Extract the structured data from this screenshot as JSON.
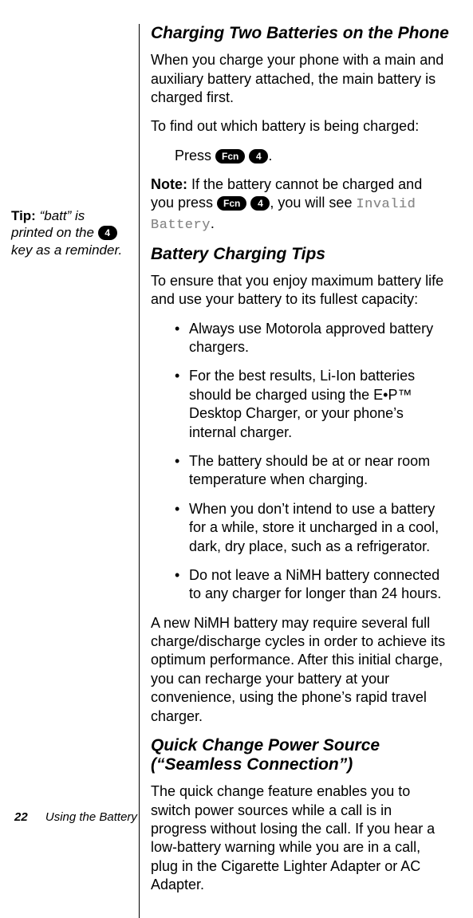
{
  "sidebar": {
    "tip_label": "Tip:",
    "tip_text_1": "“batt” is printed on the ",
    "key4": "4",
    "tip_text_2": " key as a reminder."
  },
  "sec1": {
    "heading": "Charging Two Batteries on the Phone",
    "p1": "When you charge your phone with a main and auxiliary battery attached, the main battery is charged first.",
    "p2": "To find out which battery is being charged:",
    "press_label": "Press ",
    "key_fcn": "Fcn",
    "key_4": "4",
    "press_end": ".",
    "note_label": "Note:",
    "note_text_1": " If the battery cannot be charged and you press ",
    "note_text_2": ", you will see ",
    "invalid": "Invalid Battery",
    "note_text_3": "."
  },
  "sec2": {
    "heading": "Battery Charging Tips",
    "intro": "To ensure that you enjoy maximum battery life and use your battery to its fullest capacity:",
    "b1": "Always use Motorola approved battery chargers.",
    "b2": "For the best results, Li-Ion batteries should be charged using the E•P™ Desktop Charger, or your phone’s internal charger.",
    "b3": "The battery should be at or near room temperature when charging.",
    "b4": "When you don’t intend to use a battery for a while, store it uncharged in a cool, dark, dry place, such as a refrigerator.",
    "b5": "Do not leave a NiMH battery connected to any charger for longer than 24 hours.",
    "outro": "A new NiMH battery may require several full charge/discharge cycles in order to achieve its optimum performance. After this initial charge, you can recharge your battery at your convenience, using the phone’s rapid travel charger."
  },
  "sec3": {
    "heading": "Quick Change Power Source (“Seamless Connection”)",
    "p1": "The quick change feature enables you to switch power sources while a call is in progress without losing the call. If you hear a low-battery warning while you are in a call, plug in the Cigarette Lighter Adapter or AC Adapter."
  },
  "footer": {
    "page": "22",
    "section": "Using the Battery"
  }
}
